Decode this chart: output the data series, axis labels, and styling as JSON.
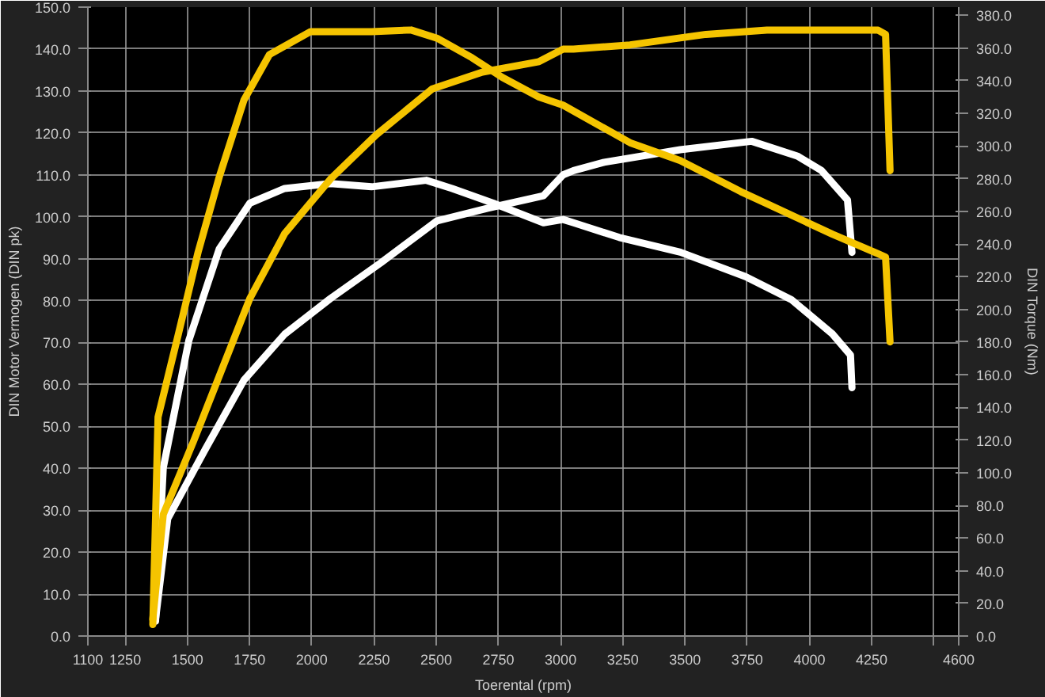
{
  "chart_data": {
    "type": "line",
    "xlabel": "Toerental (rpm)",
    "ylabel": "DIN Motor Vermogen (DIN pk)",
    "y2label": "DIN Torque (Nm)",
    "xlim": [
      1100,
      4600
    ],
    "xticks": [
      1100,
      1250,
      1500,
      1750,
      2000,
      2250,
      2500,
      2750,
      3000,
      3250,
      3500,
      3750,
      4000,
      4250,
      {
        "value": 4500,
        "label": null
      },
      4600
    ],
    "ylim": [
      0,
      150
    ],
    "yticks": [
      {
        "value": 0,
        "label": "0.0"
      },
      {
        "value": 10,
        "label": "10.0"
      },
      {
        "value": 20,
        "label": "20.0"
      },
      {
        "value": 30,
        "label": "30.0"
      },
      {
        "value": 40,
        "label": "40.0"
      },
      {
        "value": 50,
        "label": "50.0"
      },
      {
        "value": 60,
        "label": "60.0"
      },
      {
        "value": 70,
        "label": "70.0"
      },
      {
        "value": 80,
        "label": "80.0"
      },
      {
        "value": 90,
        "label": "90.0"
      },
      {
        "value": 100,
        "label": "100.0"
      },
      {
        "value": 110,
        "label": "110.0"
      },
      {
        "value": 120,
        "label": "120.0"
      },
      {
        "value": 130,
        "label": "130.0"
      },
      {
        "value": 140,
        "label": "140.0"
      },
      {
        "value": 150,
        "label": "150.0"
      }
    ],
    "y2lim": [
      0,
      385
    ],
    "y2ticks": [
      {
        "value": 0,
        "label": "0.0"
      },
      {
        "value": 20,
        "label": "20.0"
      },
      {
        "value": 40,
        "label": "40.0"
      },
      {
        "value": 60,
        "label": "60.0"
      },
      {
        "value": 80,
        "label": "80.0"
      },
      {
        "value": 100,
        "label": "100.0"
      },
      {
        "value": 120,
        "label": "120.0"
      },
      {
        "value": 140,
        "label": "140.0"
      },
      {
        "value": 160,
        "label": "160.0"
      },
      {
        "value": 180,
        "label": "180.0"
      },
      {
        "value": 200,
        "label": "200.0"
      },
      {
        "value": 220,
        "label": "220.0"
      },
      {
        "value": 240,
        "label": "240.0"
      },
      {
        "value": 260,
        "label": "260.0"
      },
      {
        "value": 280,
        "label": "280.0"
      },
      {
        "value": 300,
        "label": "300.0"
      },
      {
        "value": 320,
        "label": "320.0"
      },
      {
        "value": 340,
        "label": "340.0"
      },
      {
        "value": 360,
        "label": "360.0"
      },
      {
        "value": 380,
        "label": "380.0"
      }
    ],
    "grid": true,
    "marker": "none",
    "line_style": "solid",
    "series": [
      {
        "color": "#ffffff",
        "x": [
          1372,
          1421,
          1567,
          1727,
          1891,
          2075,
          2277,
          2503,
          2704,
          2931,
          3010,
          3052,
          3175,
          3481,
          3768,
          3951,
          4049,
          4153,
          4171
        ],
        "values": [
          4,
          28,
          44,
          61,
          72,
          80.5,
          89,
          99,
          102,
          105,
          110,
          111,
          113,
          116,
          118,
          114.5,
          111,
          104,
          91.5
        ]
      },
      {
        "color": "#ffffff",
        "axis": "y2",
        "x": [
          1372,
          1403,
          1506,
          1628,
          1751,
          1891,
          2075,
          2240,
          2460,
          2564,
          2729,
          2931,
          3010,
          3052,
          3236,
          3481,
          3743,
          3927,
          4092,
          4165,
          4171
        ],
        "values": [
          9,
          103,
          181,
          237,
          265,
          274,
          277,
          275,
          279,
          274,
          265,
          253,
          255,
          253,
          244,
          235,
          220,
          206,
          185,
          172,
          152
        ]
      },
      {
        "color": "#f5c400",
        "x": [
          1361,
          1403,
          1525,
          1628,
          1751,
          1891,
          2075,
          2258,
          2484,
          2686,
          2913,
          3010,
          3052,
          3279,
          3584,
          3829,
          4012,
          4276,
          4306,
          4324
        ],
        "values": [
          4,
          29,
          46.5,
          62,
          80.5,
          96,
          109,
          119.5,
          130.5,
          134.5,
          137,
          140,
          140,
          141,
          143.5,
          144.5,
          144.5,
          144.5,
          143.5,
          111
        ]
      },
      {
        "color": "#f5c400",
        "axis": "y2",
        "x": [
          1361,
          1372,
          1382,
          1464,
          1543,
          1628,
          1727,
          1830,
          1995,
          2240,
          2399,
          2503,
          2644,
          2766,
          2913,
          3010,
          3279,
          3481,
          3725,
          3951,
          4092,
          4276,
          4306,
          4324
        ],
        "values": [
          7,
          72,
          134,
          185,
          235,
          281,
          328,
          356,
          370,
          370,
          371,
          366,
          354,
          342,
          330,
          325,
          302,
          291,
          272,
          256,
          246,
          234,
          232,
          180
        ]
      }
    ]
  }
}
